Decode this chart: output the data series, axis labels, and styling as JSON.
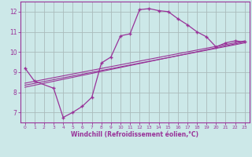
{
  "xlabel": "Windchill (Refroidissement éolien,°C)",
  "bg_color": "#cce8e8",
  "grid_color": "#aabbbb",
  "line_color": "#993399",
  "xlim": [
    -0.5,
    23.5
  ],
  "ylim": [
    6.5,
    12.5
  ],
  "xticks": [
    0,
    1,
    2,
    3,
    4,
    5,
    6,
    7,
    8,
    9,
    10,
    11,
    12,
    13,
    14,
    15,
    16,
    17,
    18,
    19,
    20,
    21,
    22,
    23
  ],
  "yticks": [
    7,
    8,
    9,
    10,
    11,
    12
  ],
  "curve1": {
    "x": [
      0,
      1,
      3,
      4,
      5,
      6,
      7,
      8,
      9,
      10,
      11,
      12,
      13,
      14,
      15,
      16,
      17,
      18,
      19,
      20,
      21,
      22,
      23
    ],
    "y": [
      9.2,
      8.55,
      8.2,
      6.75,
      7.0,
      7.3,
      7.75,
      9.45,
      9.75,
      10.8,
      10.9,
      12.1,
      12.15,
      12.05,
      12.0,
      11.65,
      11.35,
      11.0,
      10.75,
      10.25,
      10.45,
      10.55,
      10.5
    ]
  },
  "line1": {
    "x": [
      0,
      23
    ],
    "y": [
      8.25,
      10.5
    ]
  },
  "line2": {
    "x": [
      0,
      23
    ],
    "y": [
      8.35,
      10.45
    ]
  },
  "line3": {
    "x": [
      0,
      23
    ],
    "y": [
      8.45,
      10.55
    ]
  }
}
